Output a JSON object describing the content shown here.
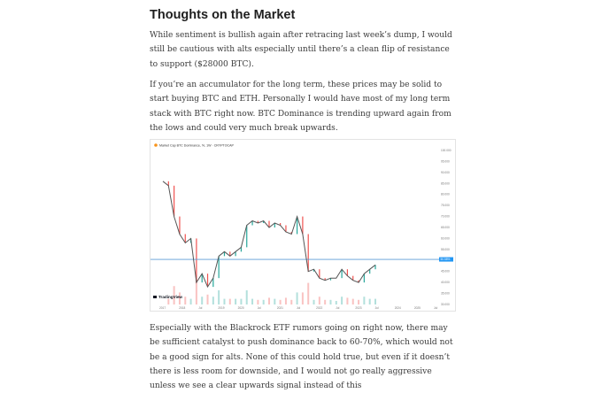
{
  "article": {
    "heading": "Thoughts on the Market",
    "paragraph_1": "While sentiment is bullish again after retracing last week’s dump, I would still be cautious with alts especially until there’s a clean flip of resistance to support ($28000 BTC).",
    "paragraph_2": "If you’re an accumulator for the long term, these prices may be solid to start buying BTC and ETH. Personally I would have most of my long term stack with BTC right now. BTC Dominance is trending upward again from the lows and could very much break upwards.",
    "paragraph_3": "Especially with the Blackrock ETF rumors going on right now, there may be sufficient catalyst to push dominance back to 60-70%, which would not be a good sign for alts. None of this could hold true, but even if it doesn’t there is less room for downside, and I would not go really aggressive unless we see a clear upwards signal instead of this"
  },
  "chart": {
    "title": "Market Cap BTC Dominance, %, 1W · CRYPTOCAP",
    "watermark": "TradingView",
    "price_label": "50.58%",
    "colors": {
      "up": "#26a69a",
      "down": "#ef5350",
      "horizontal_line": "#5b9bd5",
      "current_price": "#2196f3"
    }
  },
  "chart_data": {
    "type": "line",
    "y_ticks": [
      "100.000",
      "95.000",
      "90.000",
      "85.000",
      "80.000",
      "75.000",
      "70.000",
      "65.000",
      "60.000",
      "55.000",
      "50.000",
      "45.000",
      "40.000",
      "35.000",
      "30.000"
    ],
    "x_ticks": [
      "2017",
      "2018",
      "Jul",
      "2019",
      "2020",
      "Jul",
      "2021",
      "Jul",
      "2022",
      "Jul",
      "2023",
      "Jul",
      "2024",
      "2025",
      "Jul"
    ],
    "x": [
      "2017-01",
      "2017-03",
      "2017-05",
      "2017-07",
      "2017-09",
      "2017-11",
      "2018-01",
      "2018-03",
      "2018-05",
      "2018-07",
      "2018-09",
      "2018-11",
      "2019-01",
      "2019-03",
      "2019-05",
      "2019-07",
      "2019-09",
      "2019-11",
      "2020-01",
      "2020-03",
      "2020-05",
      "2020-07",
      "2020-09",
      "2020-11",
      "2021-01",
      "2021-03",
      "2021-05",
      "2021-07",
      "2021-09",
      "2021-11",
      "2022-01",
      "2022-03",
      "2022-05",
      "2022-07",
      "2022-09",
      "2022-11",
      "2023-01",
      "2023-03",
      "2023-05"
    ],
    "series": [
      {
        "values": [
          86,
          84,
          70,
          62,
          58,
          60,
          40,
          44,
          38,
          42,
          52,
          54,
          52,
          54,
          56,
          66,
          68,
          67,
          68,
          65,
          67,
          66,
          63,
          62,
          70,
          62,
          45,
          46,
          42,
          41,
          42,
          42,
          46,
          43,
          41,
          40,
          44,
          46,
          48
        ]
      }
    ],
    "reference_line_value": 50.5,
    "ylim": [
      30,
      100
    ]
  }
}
